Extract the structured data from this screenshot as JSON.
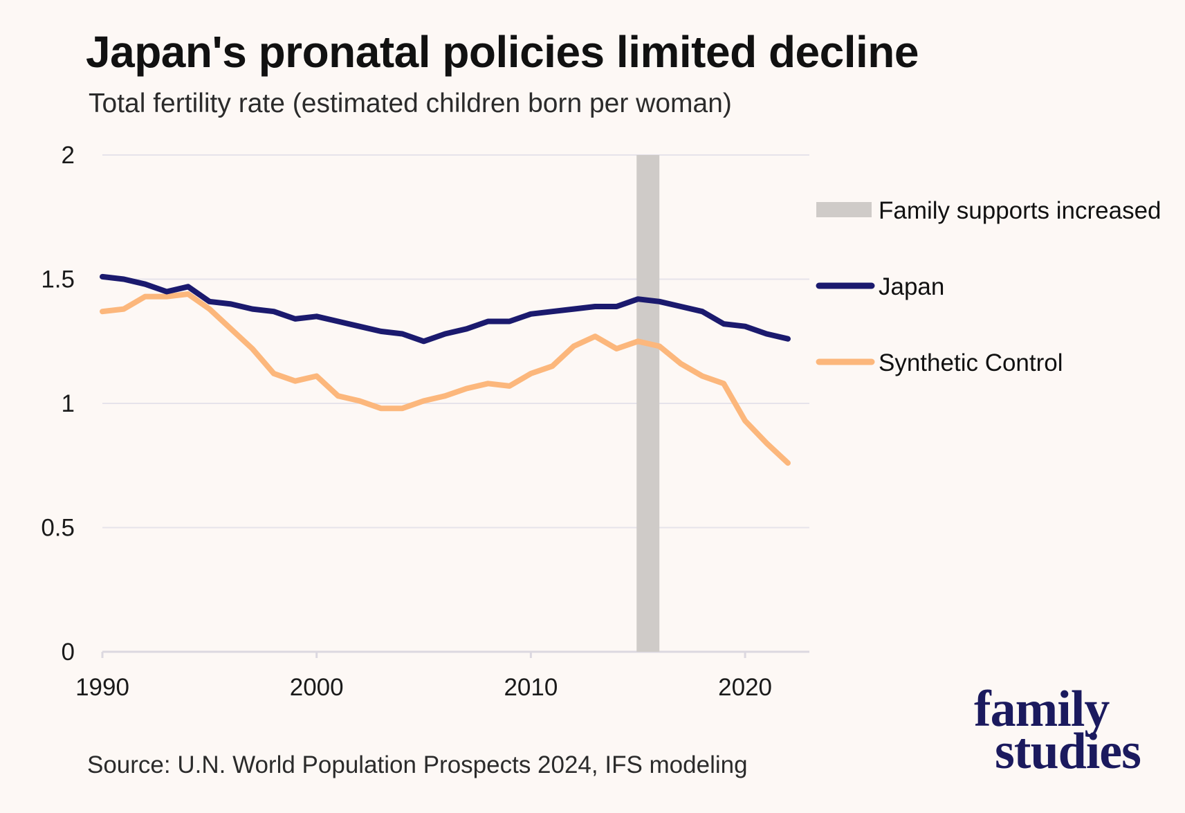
{
  "colors": {
    "background": "#fdf8f5",
    "japan": "#1b1a6e",
    "synthetic": "#fcb77c",
    "shade": "#cfcbc8",
    "grid": "#e6e3ea",
    "logo": "#1b1a5e"
  },
  "chart_data": {
    "type": "line",
    "title": "Japan's pronatal policies limited decline",
    "subtitle": "Total fertility rate (estimated children born per woman)",
    "xlabel": "",
    "ylabel": "",
    "xlim": [
      1990,
      2023
    ],
    "ylim": [
      0,
      2
    ],
    "x_ticks": [
      "1990",
      "2000",
      "2010",
      "2020"
    ],
    "y_ticks": [
      "0",
      "0.5",
      "1",
      "1.5",
      "2"
    ],
    "grid": "horizontal",
    "legend_position": "right",
    "shaded_region": {
      "label": "Family supports increased",
      "x_start": 2015,
      "x_end": 2016
    },
    "x": [
      1990,
      1991,
      1992,
      1993,
      1994,
      1995,
      1996,
      1997,
      1998,
      1999,
      2000,
      2001,
      2002,
      2003,
      2004,
      2005,
      2006,
      2007,
      2008,
      2009,
      2010,
      2011,
      2012,
      2013,
      2014,
      2015,
      2016,
      2017,
      2018,
      2019,
      2020,
      2021,
      2022
    ],
    "series": [
      {
        "name": "Japan",
        "values": [
          1.51,
          1.5,
          1.48,
          1.45,
          1.47,
          1.41,
          1.4,
          1.38,
          1.37,
          1.34,
          1.35,
          1.33,
          1.31,
          1.29,
          1.28,
          1.25,
          1.28,
          1.3,
          1.33,
          1.33,
          1.36,
          1.37,
          1.38,
          1.39,
          1.39,
          1.42,
          1.41,
          1.39,
          1.37,
          1.32,
          1.31,
          1.28,
          1.26
        ]
      },
      {
        "name": "Synthetic Control",
        "values": [
          1.37,
          1.38,
          1.43,
          1.43,
          1.44,
          1.38,
          1.3,
          1.22,
          1.12,
          1.09,
          1.11,
          1.03,
          1.01,
          0.98,
          0.98,
          1.01,
          1.03,
          1.06,
          1.08,
          1.07,
          1.12,
          1.15,
          1.23,
          1.27,
          1.22,
          1.25,
          1.23,
          1.16,
          1.11,
          1.08,
          0.93,
          0.84,
          0.76
        ]
      }
    ]
  },
  "source": "Source: U.N. World Population Prospects 2024, IFS modeling",
  "logo": {
    "line1": "family",
    "line2": "studies"
  }
}
